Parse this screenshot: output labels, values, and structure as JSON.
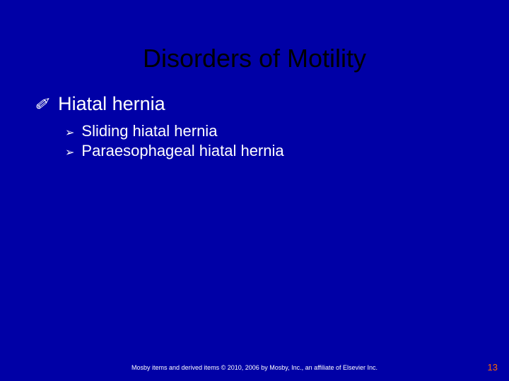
{
  "slide": {
    "title": "Disorders of Motility",
    "title_color": "#000000",
    "title_fontsize": 36,
    "background_color": "#0000a6",
    "text_color": "#ffffff",
    "level1_bullet_glyph": "✐",
    "level2_bullet_glyph": "➢",
    "level1": {
      "text": "Hiatal hernia",
      "fontsize": 27
    },
    "level2": [
      {
        "text": "Sliding hiatal hernia",
        "fontsize": 22
      },
      {
        "text": "Paraesophageal hiatal hernia",
        "fontsize": 22
      }
    ],
    "footer": "Mosby items and derived items © 2010, 2006 by Mosby, Inc., an affiliate of Elsevier Inc.",
    "footer_fontsize": 9,
    "page_number": "13",
    "page_number_color": "#ff6600",
    "page_number_fontsize": 13
  }
}
